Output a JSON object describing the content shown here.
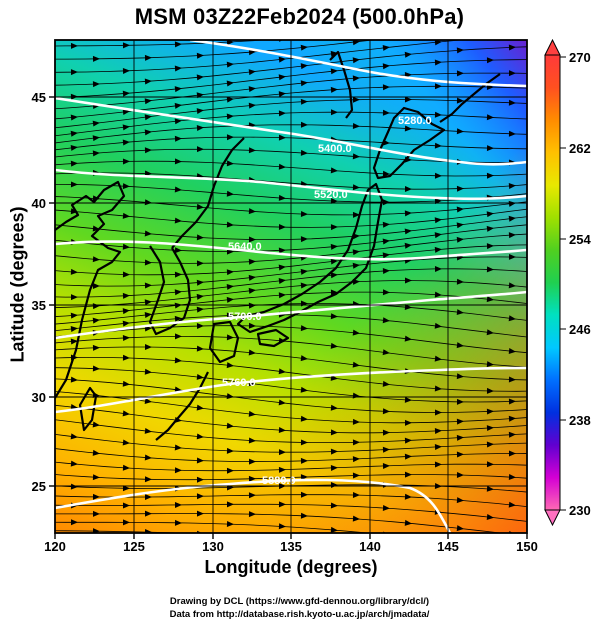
{
  "title": "MSM 03Z22Feb2024 (500.0hPa)",
  "map": {
    "xlabel": "Longitude (degrees)",
    "ylabel": "Latitude  (degrees)",
    "lon_range": [
      120,
      150
    ],
    "lat_range": [
      22.4,
      48.2
    ],
    "lon_ticks": [
      "120",
      "125",
      "130",
      "135",
      "140",
      "145",
      "150"
    ],
    "lat_ticks": [
      "25",
      "30",
      "35",
      "40",
      "45"
    ],
    "shading": "temperature field, colors from orange (south) to blue/purple (far north-east)",
    "vector_field": "streamlines with arrowheads, predominantly westerly",
    "grid": true
  },
  "contours": {
    "color": "#ffffff",
    "labels": [
      "5280.0",
      "5400.0",
      "5520.0",
      "5640.0",
      "5700.0",
      "5760.0",
      "5880.0"
    ]
  },
  "colorbar": {
    "min": 230,
    "max": 270,
    "labels": [
      "270",
      "262",
      "254",
      "246",
      "238",
      "230"
    ],
    "colors": [
      "#ff69b4",
      "#d400d4",
      "#6000d0",
      "#0030e0",
      "#0070ff",
      "#00c8ff",
      "#00e0c0",
      "#20d050",
      "#50d020",
      "#a0e000",
      "#e8e800",
      "#ffc000",
      "#ff8c00",
      "#ff5020",
      "#ff3a3a"
    ]
  },
  "credits": {
    "line1": "Drawing by DCL (https://www.gfd-dennou.org/library/dcl/)",
    "line2": "Data from http://database.rish.kyoto-u.ac.jp/arch/jmadata/"
  }
}
